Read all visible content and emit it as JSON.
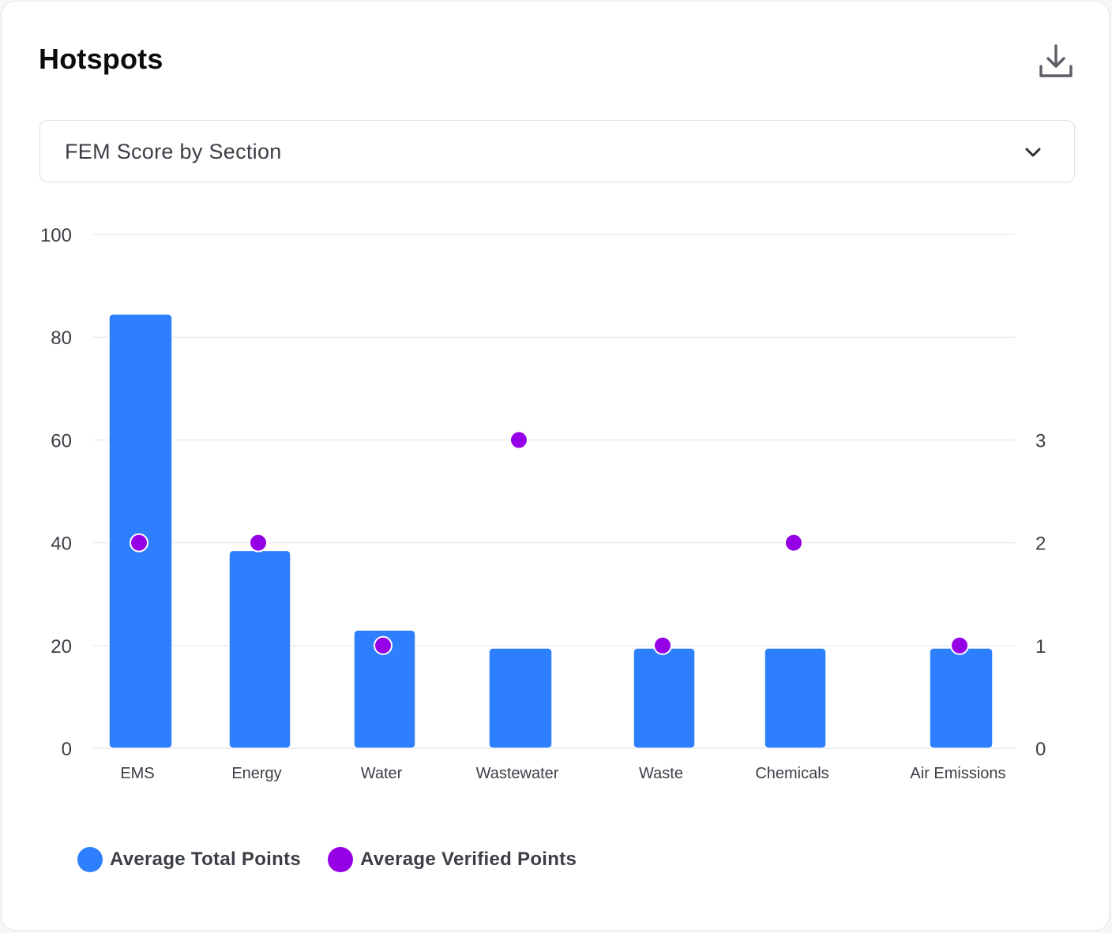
{
  "header": {
    "title": "Hotspots",
    "download_icon": "download-icon"
  },
  "selector": {
    "selected": "FEM Score by Section",
    "icon": "chevron-down-icon"
  },
  "chart_data": {
    "type": "bar",
    "categories": [
      "EMS",
      "Energy",
      "Water",
      "Wastewater",
      "Waste",
      "Chemicals",
      "Air Emissions"
    ],
    "series": [
      {
        "name": "Average Total Points",
        "type": "bar",
        "axis": "left",
        "color": "#2d7ffe",
        "values": [
          84.5,
          38.5,
          23,
          19.5,
          19.5,
          19.5,
          19.5
        ]
      },
      {
        "name": "Average Verified Points",
        "type": "scatter",
        "axis": "right",
        "color": "#9500e6",
        "values": [
          2,
          2,
          1,
          3,
          1,
          2,
          1
        ]
      }
    ],
    "y_left": {
      "ticks": [
        0,
        20,
        40,
        60,
        80,
        100
      ],
      "range": [
        0,
        100
      ]
    },
    "y_right": {
      "ticks": [
        0,
        1,
        2,
        3
      ],
      "range": [
        0,
        5
      ]
    },
    "grid": true,
    "legend_position": "bottom-left"
  }
}
